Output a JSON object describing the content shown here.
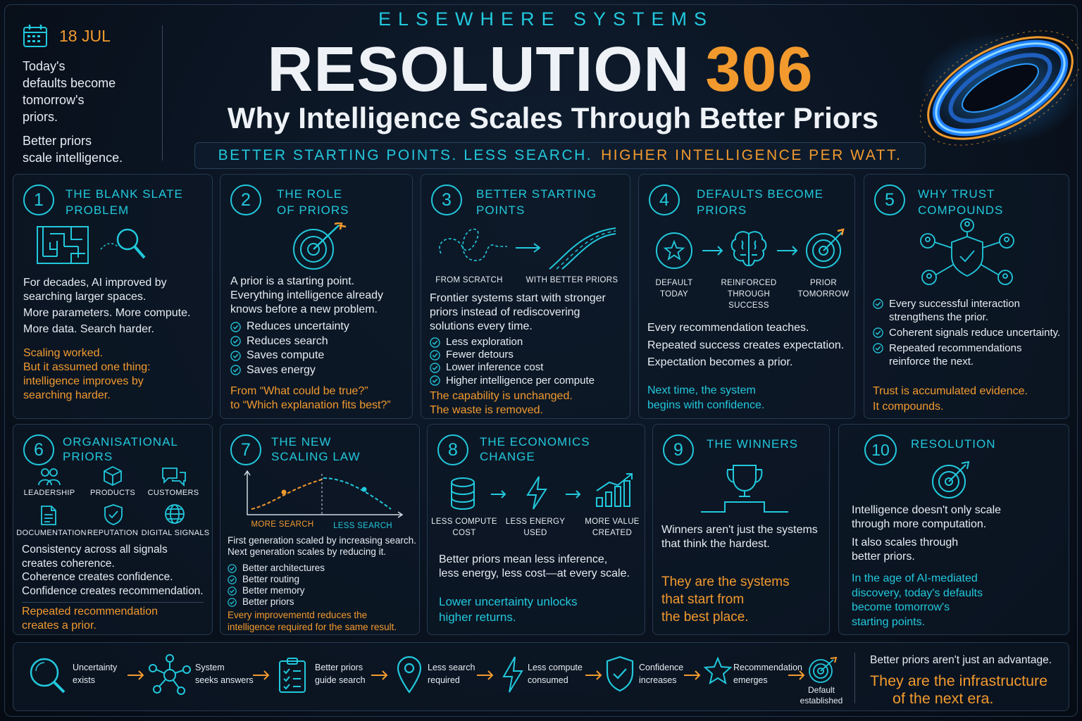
{
  "header": {
    "date": "18 JUL",
    "quote_lines": [
      "Today's",
      "defaults become",
      "tomorrow's"
    ],
    "quote_accent": "priors.",
    "quote2": "Better priors",
    "quote2_accent": "scale intelligence.",
    "brand": "ELSEWHERE SYSTEMS",
    "title": "RESOLUTION",
    "title_number": "306",
    "subtitle": "Why Intelligence Scales Through Better Priors",
    "tagline_cyan": "BETTER STARTING POINTS. LESS SEARCH.",
    "tagline_orange": "HIGHER INTELLIGENCE PER WATT."
  },
  "colors": {
    "accent": "#22c8dc",
    "highlight": "#f29a2e",
    "background": "#0a1320"
  },
  "cards": [
    {
      "number": "1",
      "title": [
        "THE BLANK SLATE",
        "PROBLEM"
      ],
      "icons": [
        "maze-icon",
        "magnifier-icon"
      ],
      "body": [
        "For decades, AI improved by",
        "searching larger spaces.",
        "More parameters. More compute.",
        "More data.  Search harder."
      ],
      "highlight": [
        "Scaling worked.",
        "But it assumed one thing:",
        "intelligence improves by",
        "searching harder."
      ]
    },
    {
      "number": "2",
      "title": [
        "THE ROLE",
        "OF PRIORS"
      ],
      "icons": [
        "target-icon"
      ],
      "body": [
        "A prior is a starting point.",
        "Everything intelligence already",
        "knows before a new problem."
      ],
      "checks": [
        "Reduces uncertainty",
        "Reduces search",
        "Saves compute",
        "Saves energy"
      ],
      "highlight": [
        "From “What could be true?”",
        "to “Which explanation fits best?”"
      ]
    },
    {
      "number": "3",
      "title": [
        "BETTER STARTING",
        "POINTS"
      ],
      "labels": [
        "FROM SCRATCH",
        "WITH BETTER PRIORS"
      ],
      "body": [
        "Frontier systems start with stronger",
        "priors instead of rediscovering",
        "solutions every time."
      ],
      "checks": [
        "Less exploration",
        "Fewer detours",
        "Lower inference cost",
        "Higher intelligence per compute"
      ],
      "highlight": [
        "The capability is unchanged.",
        "The waste is removed."
      ]
    },
    {
      "number": "4",
      "title": [
        "DEFAULTS BECOME",
        "PRIORS"
      ],
      "labels": [
        [
          "DEFAULT",
          "TODAY"
        ],
        [
          "REINFORCED",
          "THROUGH",
          "SUCCESS"
        ],
        [
          "PRIOR",
          "TOMORROW"
        ]
      ],
      "body": [
        "Every recommendation teaches.",
        "Repeated success creates expectation.",
        "Expectation becomes a prior."
      ],
      "closing": [
        "Next time, the system",
        "begins with confidence."
      ]
    },
    {
      "number": "5",
      "title": [
        "WHY TRUST",
        "COMPOUNDS"
      ],
      "checks": [
        [
          "Every successful interaction",
          "strengthens the prior."
        ],
        [
          "Coherent signals reduce uncertainty."
        ],
        [
          "Repeated recommendations",
          "reinforce the next."
        ]
      ],
      "highlight": [
        "Trust is accumulated evidence.",
        "It compounds."
      ]
    },
    {
      "number": "6",
      "title": [
        "ORGANISATIONAL",
        "PRIORS"
      ],
      "labels": [
        "LEADERSHIP",
        "PRODUCTS",
        "CUSTOMERS",
        "DOCUMENTATION",
        "REPUTATION",
        "DIGITAL SIGNALS"
      ],
      "body": [
        "Consistency across all signals",
        "creates coherence.",
        "Coherence creates confidence.",
        "Confidence creates recommendation."
      ],
      "highlight": [
        "Repeated recommendation",
        "creates a prior."
      ]
    },
    {
      "number": "7",
      "title": [
        "THE NEW",
        "SCALING LAW"
      ],
      "chart_labels": [
        "MORE SEARCH",
        "LESS SEARCH"
      ],
      "body": [
        "First generation scaled by increasing search.",
        "Next generation scales by reducing it."
      ],
      "checks": [
        "Better architectures",
        "Better routing",
        "Better memory",
        "Better priors"
      ],
      "highlight": [
        "Every improvementd reduces the",
        "intelligence required for the same result."
      ]
    },
    {
      "number": "8",
      "title": [
        "THE ECONOMICS",
        "CHANGE"
      ],
      "labels": [
        [
          "LESS COMPUTE",
          "COST"
        ],
        [
          "LESS ENERGY",
          "USED"
        ],
        [
          "MORE VALUE",
          "CREATED"
        ]
      ],
      "body": [
        "Better priors mean less inference,",
        "less energy, less cost—at every scale."
      ],
      "closing": [
        "Lower uncertainty unlocks",
        "higher returns."
      ]
    },
    {
      "number": "9",
      "title": [
        "THE WINNERS"
      ],
      "body": [
        "Winners aren't just the systems",
        "that think the hardest."
      ],
      "highlight": [
        "They are the systems",
        "that start from",
        "the best place."
      ]
    },
    {
      "number": "10",
      "title": [
        "RESOLUTION"
      ],
      "body": [
        "Intelligence doesn't only scale",
        "through more computation."
      ],
      "body2": [
        "It also scales through",
        "better priors."
      ],
      "closing": [
        "In the age of AI-mediated",
        "discovery, today's defaults",
        "become tomorrow's",
        "starting points."
      ]
    }
  ],
  "flow": {
    "steps": [
      [
        "Uncertainty",
        "exists"
      ],
      [
        "System",
        "seeks answers"
      ],
      [
        "Better priors",
        "guide search"
      ],
      [
        "Less search",
        "required"
      ],
      [
        "Less compute",
        "consumed"
      ],
      [
        "Confidence",
        "increases"
      ],
      [
        "Recommendation",
        "emerges"
      ],
      [
        "Default",
        "established"
      ]
    ],
    "closing": "Better priors aren't just an advantage.",
    "closing_highlight": [
      "They are the infrastructure",
      "of the next era."
    ]
  }
}
